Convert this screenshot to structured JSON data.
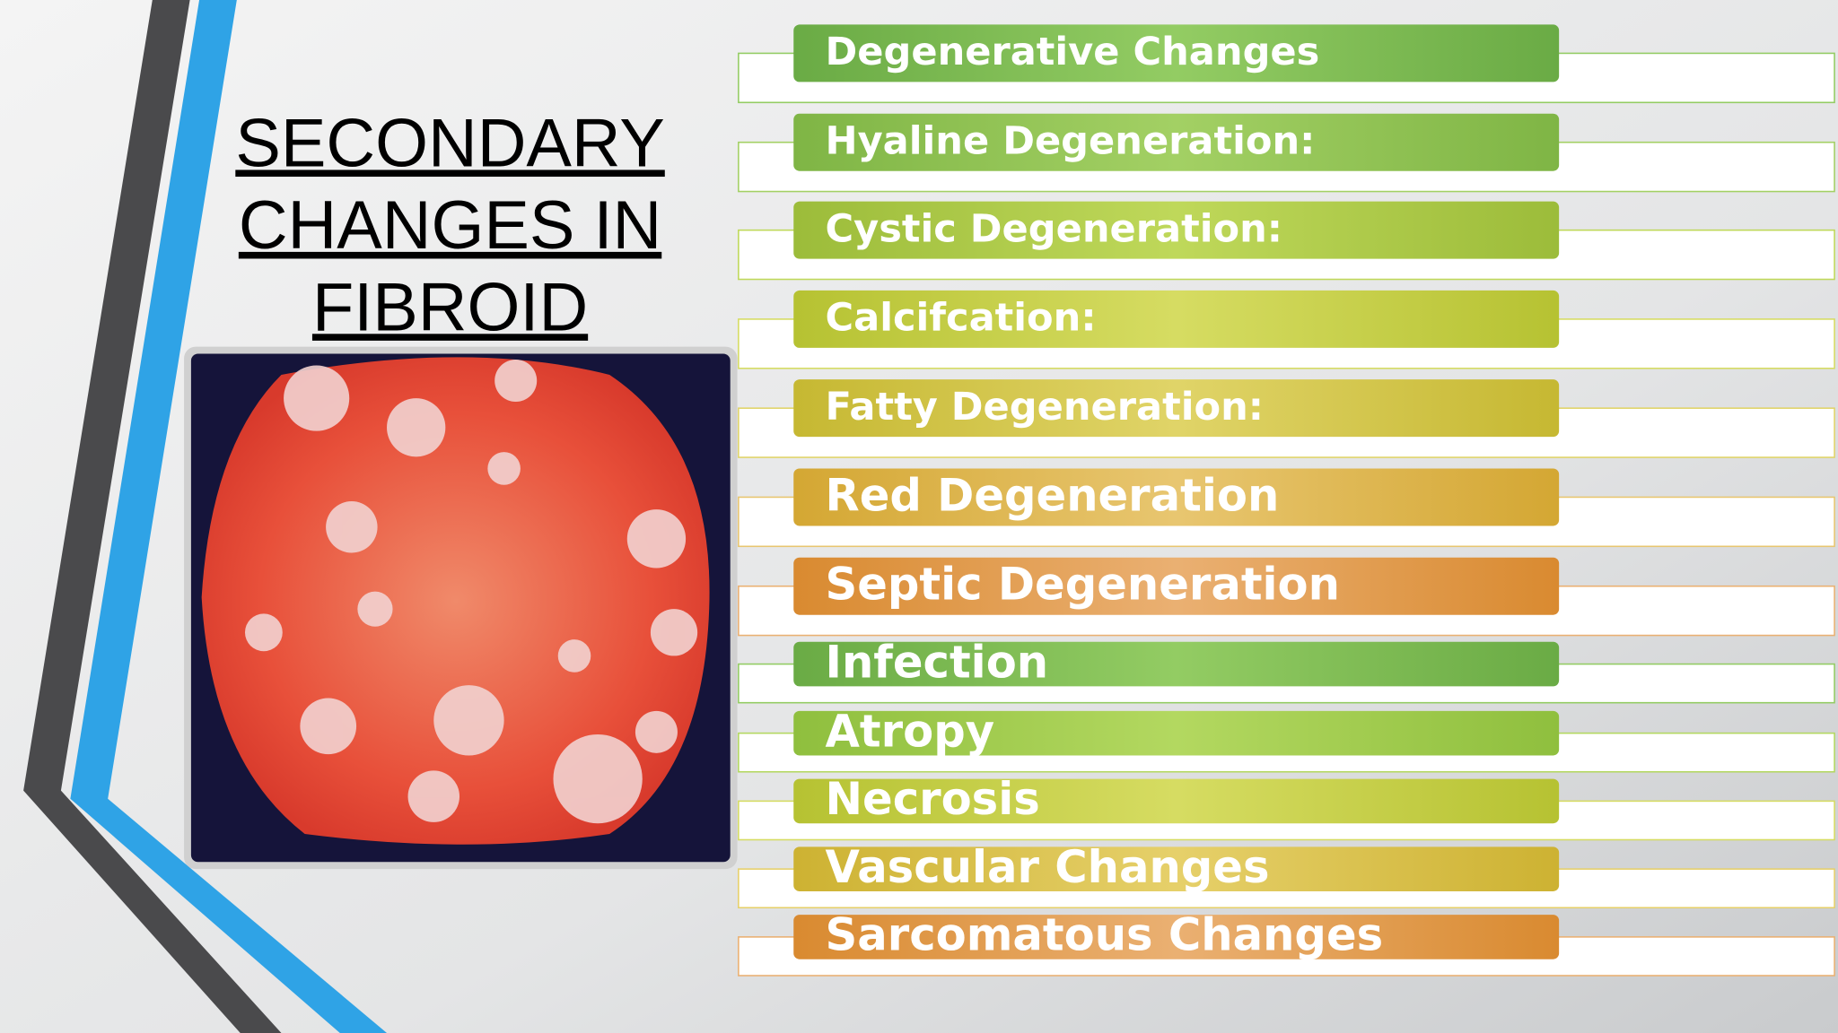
{
  "title": [
    "SECONDARY",
    "CHANGES IN",
    "FIBROID"
  ],
  "items": [
    "Degenerative Changes",
    "Hyaline Degeneration:",
    "Cystic Degeneration:",
    "Calcifcation:",
    "Fatty Degeneration:",
    "Red Degeneration",
    "Septic Degeneration",
    "Infection",
    "Atropy",
    "Necrosis",
    "Vascular Changes",
    "Sarcomatous Changes"
  ]
}
